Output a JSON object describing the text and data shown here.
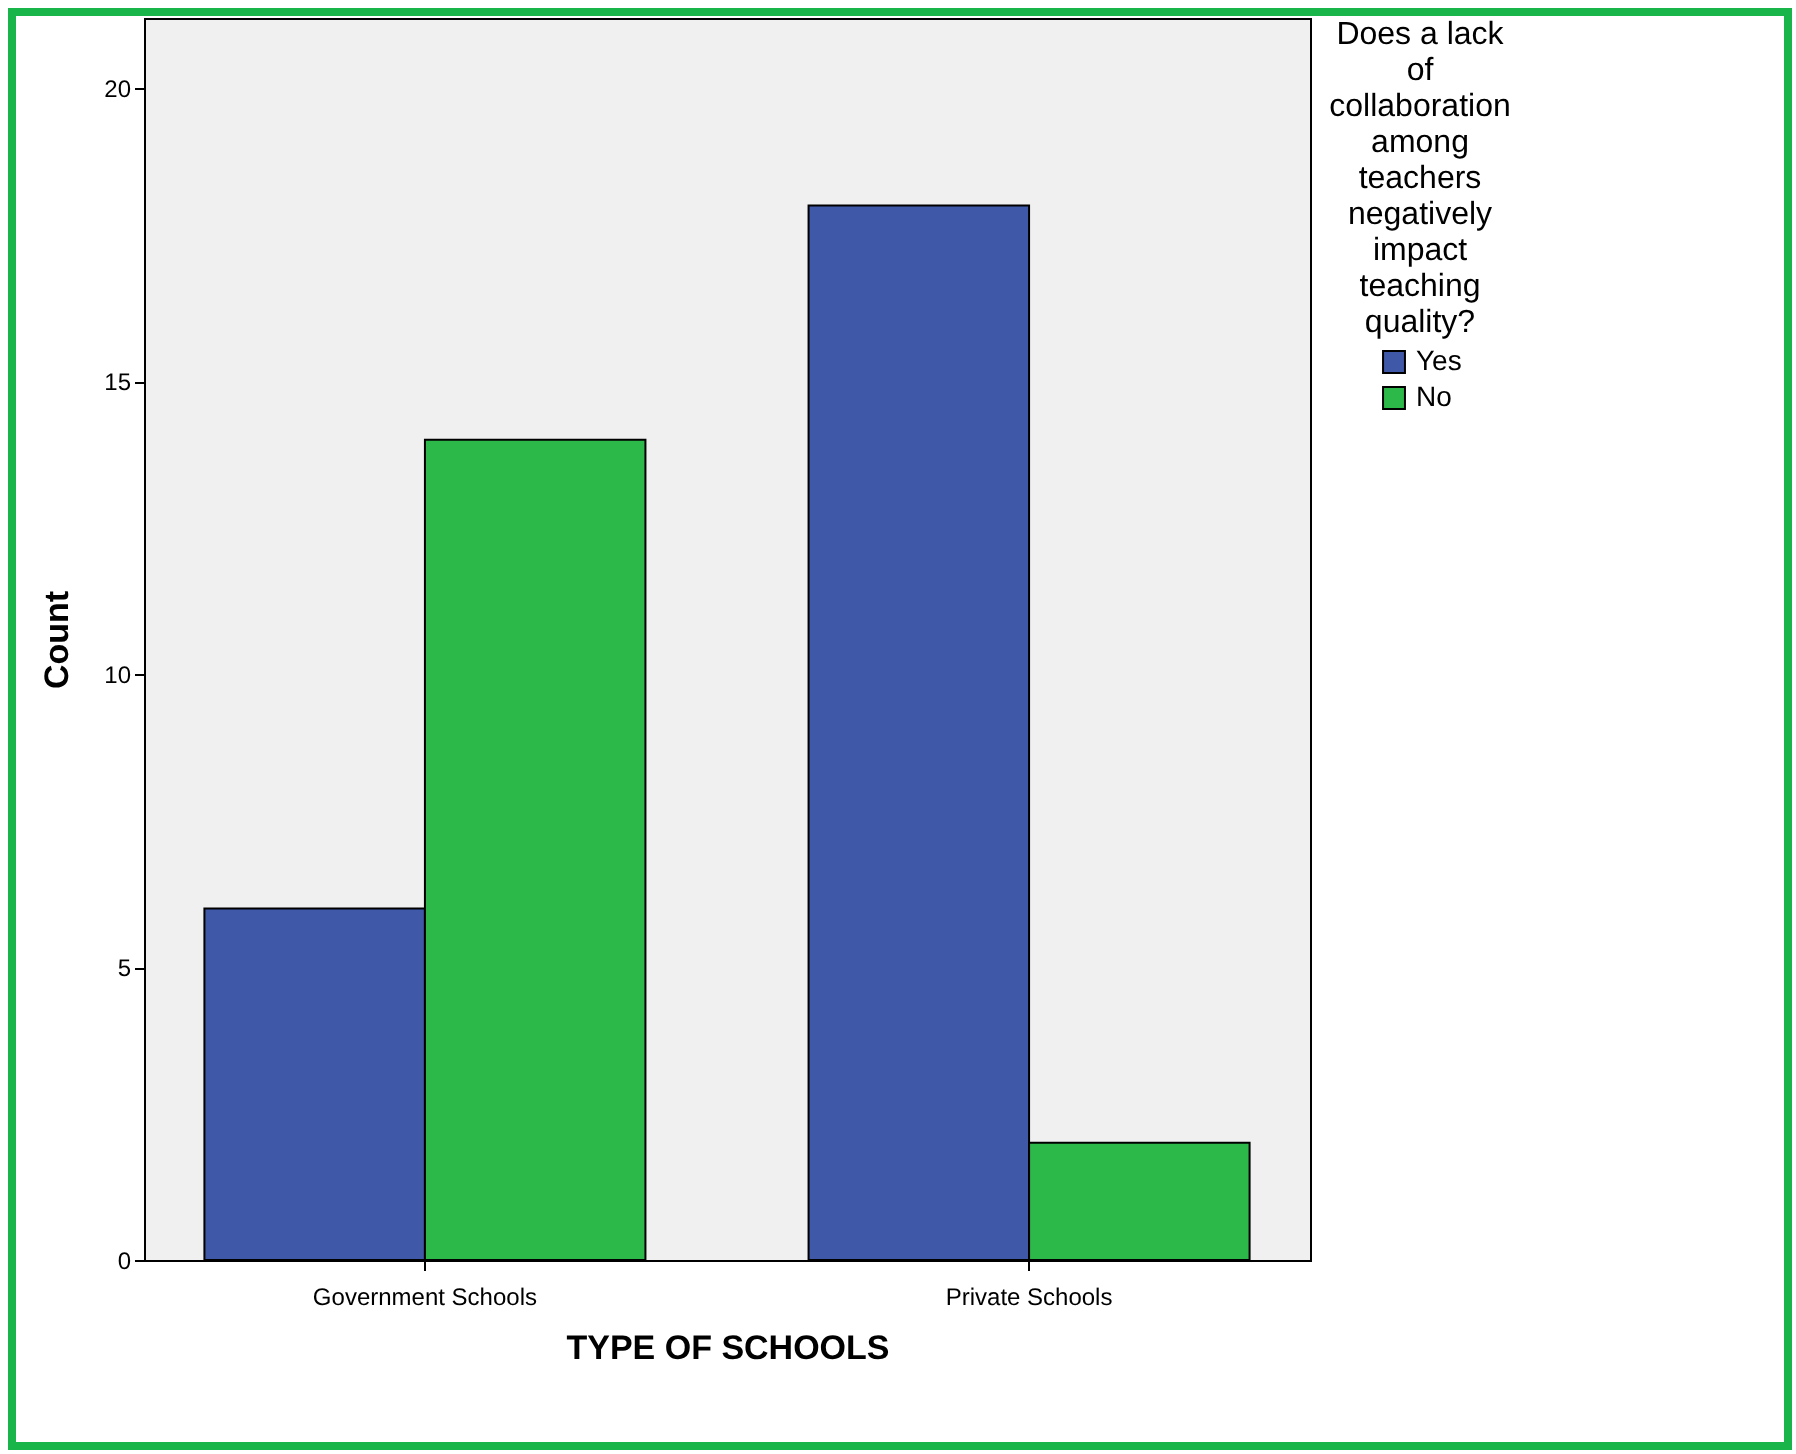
{
  "chart_data": {
    "type": "bar",
    "xlabel": "TYPE OF SCHOOLS",
    "ylabel": "Count",
    "legend_title": "Does a lack of collaboration among teachers negatively impact teaching quality?",
    "categories": [
      "Government Schools",
      "Private Schools"
    ],
    "series": [
      {
        "name": "Yes",
        "color": "#3f58a8",
        "values": [
          6,
          18
        ]
      },
      {
        "name": "No",
        "color": "#2db84a",
        "values": [
          14,
          2
        ]
      }
    ],
    "ylim": [
      0,
      21.2
    ],
    "yticks": [
      0,
      5,
      10,
      15,
      20
    ],
    "grid": false,
    "legend": "right"
  }
}
